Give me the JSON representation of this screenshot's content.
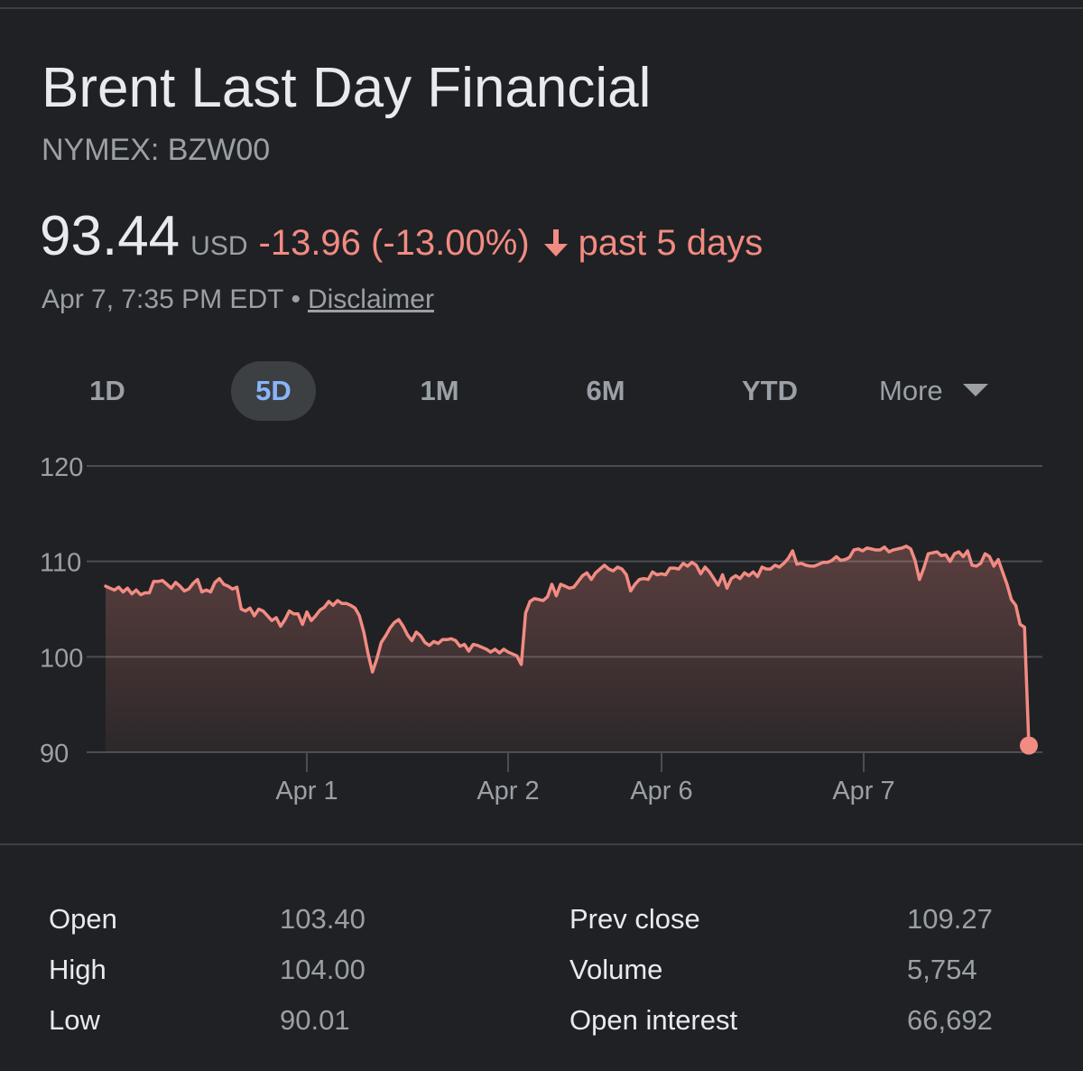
{
  "header": {
    "title": "Brent Last Day Financial",
    "ticker": "NYMEX: BZW00"
  },
  "quote": {
    "price": "93.44",
    "currency": "USD",
    "change": "-13.96 (-13.00%)",
    "period": "past 5 days",
    "timestamp": "Apr 7, 7:35 PM EDT",
    "separator": "•",
    "disclaimer": "Disclaimer",
    "direction": "down",
    "change_color": "#f28b82"
  },
  "range_tabs": {
    "items": [
      "1D",
      "5D",
      "1M",
      "6M",
      "YTD"
    ],
    "selected": "5D",
    "more": "More"
  },
  "chart_data": {
    "type": "area",
    "title": "",
    "xlabel": "",
    "ylabel": "",
    "ylim": [
      90,
      120
    ],
    "yticks": [
      "120",
      "110",
      "100",
      "90"
    ],
    "xtick_labels": [
      "Apr 1",
      "Apr 2",
      "Apr 6",
      "Apr 7"
    ],
    "grid": true,
    "line_color": "#f28b82",
    "series": [
      {
        "values": [
          107.4,
          107.2,
          107.0,
          107.3,
          106.8,
          107.2,
          106.6,
          107.0,
          106.5,
          106.7,
          106.7,
          107.9,
          107.9,
          108.0,
          107.6,
          107.2,
          107.8,
          107.4,
          106.9,
          107.1,
          107.7,
          108.1,
          106.8,
          107.0,
          106.8,
          107.8,
          108.2,
          107.6,
          107.4,
          107.1,
          107.3,
          105.0,
          104.8,
          105.1,
          104.3,
          105.0,
          104.8,
          104.3,
          103.8,
          104.1,
          103.2,
          103.9,
          104.8,
          104.5,
          104.5,
          103.4,
          104.7,
          103.8,
          104.3,
          104.9,
          105.2,
          105.8,
          105.4,
          105.9,
          105.6,
          105.6,
          105.4,
          105.1,
          104.3,
          102.6,
          100.3,
          98.4,
          99.8,
          101.5,
          102.2,
          103.0,
          103.6,
          103.9,
          103.2,
          102.3,
          101.7,
          102.6,
          102.2,
          101.5,
          101.2,
          101.6,
          101.4,
          101.8,
          101.8,
          101.9,
          101.7,
          101.1,
          101.3,
          100.6,
          101.3,
          101.2,
          101.0,
          100.8,
          100.5,
          100.8,
          100.4,
          100.8,
          100.5,
          100.3,
          100.1,
          99.2,
          104.6,
          105.8,
          106.1,
          106.0,
          105.9,
          106.3,
          107.6,
          106.4,
          107.6,
          107.4,
          107.2,
          107.3,
          107.9,
          108.5,
          108.8,
          108.1,
          108.8,
          109.2,
          109.6,
          109.2,
          109.0,
          109.4,
          109.2,
          108.6,
          106.9,
          107.6,
          108.1,
          108.2,
          108.1,
          108.9,
          108.6,
          108.7,
          108.6,
          109.3,
          109.3,
          109.2,
          109.8,
          109.5,
          109.9,
          109.6,
          108.7,
          109.4,
          108.9,
          108.2,
          107.5,
          108.6,
          107.2,
          108.2,
          108.5,
          108.2,
          108.8,
          108.5,
          108.9,
          108.4,
          109.4,
          109.2,
          109.2,
          109.6,
          109.4,
          109.8,
          110.3,
          111.1,
          109.7,
          109.8,
          109.6,
          109.5,
          109.5,
          109.7,
          109.9,
          109.9,
          110.1,
          110.5,
          110.1,
          110.2,
          110.4,
          111.2,
          111.3,
          111.1,
          111.4,
          111.3,
          111.2,
          111.2,
          111.5,
          111.0,
          111.2,
          111.3,
          111.4,
          111.6,
          111.3,
          110.1,
          108.1,
          109.3,
          110.8,
          110.9,
          111.0,
          110.6,
          110.7,
          110.0,
          110.8,
          111.0,
          110.5,
          111.1,
          109.6,
          109.5,
          109.8,
          110.8,
          110.5,
          109.5,
          110.2,
          108.9,
          107.6,
          106.0,
          105.4,
          103.4,
          103.1,
          90.7
        ]
      }
    ]
  },
  "stats": {
    "left": [
      {
        "label": "Open",
        "value": "103.40"
      },
      {
        "label": "High",
        "value": "104.00"
      },
      {
        "label": "Low",
        "value": "90.01"
      }
    ],
    "right": [
      {
        "label": "Prev close",
        "value": "109.27"
      },
      {
        "label": "Volume",
        "value": "5,754"
      },
      {
        "label": "Open interest",
        "value": "66,692"
      }
    ]
  }
}
